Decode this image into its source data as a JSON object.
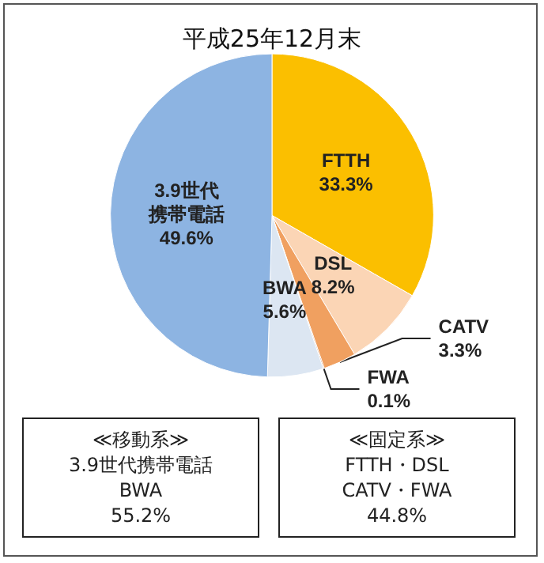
{
  "chart_data": {
    "type": "pie",
    "title": "平成25年12月末",
    "categories": [
      "FTTH",
      "DSL",
      "CATV",
      "FWA",
      "BWA",
      "3.9世代携帯電話"
    ],
    "values": [
      33.3,
      8.2,
      3.3,
      0.1,
      5.6,
      49.6
    ],
    "colors": [
      "#fbbf00",
      "#fbd5b5",
      "#f0a060",
      "#c0622a",
      "#dce6f2",
      "#8db4e2"
    ],
    "value_labels": [
      "33.3%",
      "8.2%",
      "3.3%",
      "0.1%",
      "5.6%",
      "49.6%"
    ],
    "legend": false,
    "annotations": [
      "≪移動系≫\n3.9世代携帯電話\nBWA\n55.2%",
      "≪固定系≫\nFTTH・DSL\nCATV・FWA\n44.8%"
    ]
  }
}
